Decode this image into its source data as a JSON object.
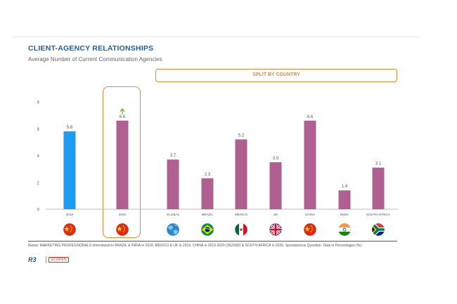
{
  "header": {
    "title": "CLIENT-AGENCY RELATIONSHIPS",
    "subtitle": "Average Number of Current Communication Agencies"
  },
  "callout": {
    "label": "SPLIT BY COUNTRY"
  },
  "colors": {
    "highlight_bar": "#1e9df0",
    "bar": "#b05f91",
    "accent": "#e38a36",
    "up_arrow": "#7cbf3a"
  },
  "flags": [
    "china-flag",
    "china-flag",
    "globe",
    "brazil-flag",
    "mexico-flag",
    "uk-flag",
    "china-flag",
    "india-flag",
    "south-africa-flag"
  ],
  "chart_data": {
    "type": "bar",
    "categories": [
      "2018",
      "2020",
      "GLOBAL",
      "BRAZIL",
      "MEXICO",
      "UK",
      "CHINA",
      "INDIA",
      "SOUTH AFRICA"
    ],
    "values": [
      5.8,
      6.6,
      3.7,
      2.3,
      5.2,
      3.5,
      6.6,
      1.4,
      3.1
    ],
    "value_labels": [
      "5.8",
      "6.6",
      "3.7",
      "2.3",
      "5.2",
      "3.5",
      "6.6",
      "1.4",
      "3.1"
    ],
    "ylim": [
      0,
      8
    ],
    "yticks": [
      "0",
      "2",
      "4",
      "6",
      "8"
    ],
    "grid": false,
    "annotations": [
      "up-arrow on 2020"
    ]
  },
  "footer": {
    "text": "Bases: MARKETING PROFESSIONALS interviewed in BRAZIL & INDIA in 2018, MEXICO & UK in 2019, CHINA in 2019-2020 (352/282) & SOUTH AFRICA in 2020. Spontaneous Question. Data in Percentages (%)."
  },
  "logo": {
    "brand": "R3",
    "partner": "SCOPEN"
  }
}
